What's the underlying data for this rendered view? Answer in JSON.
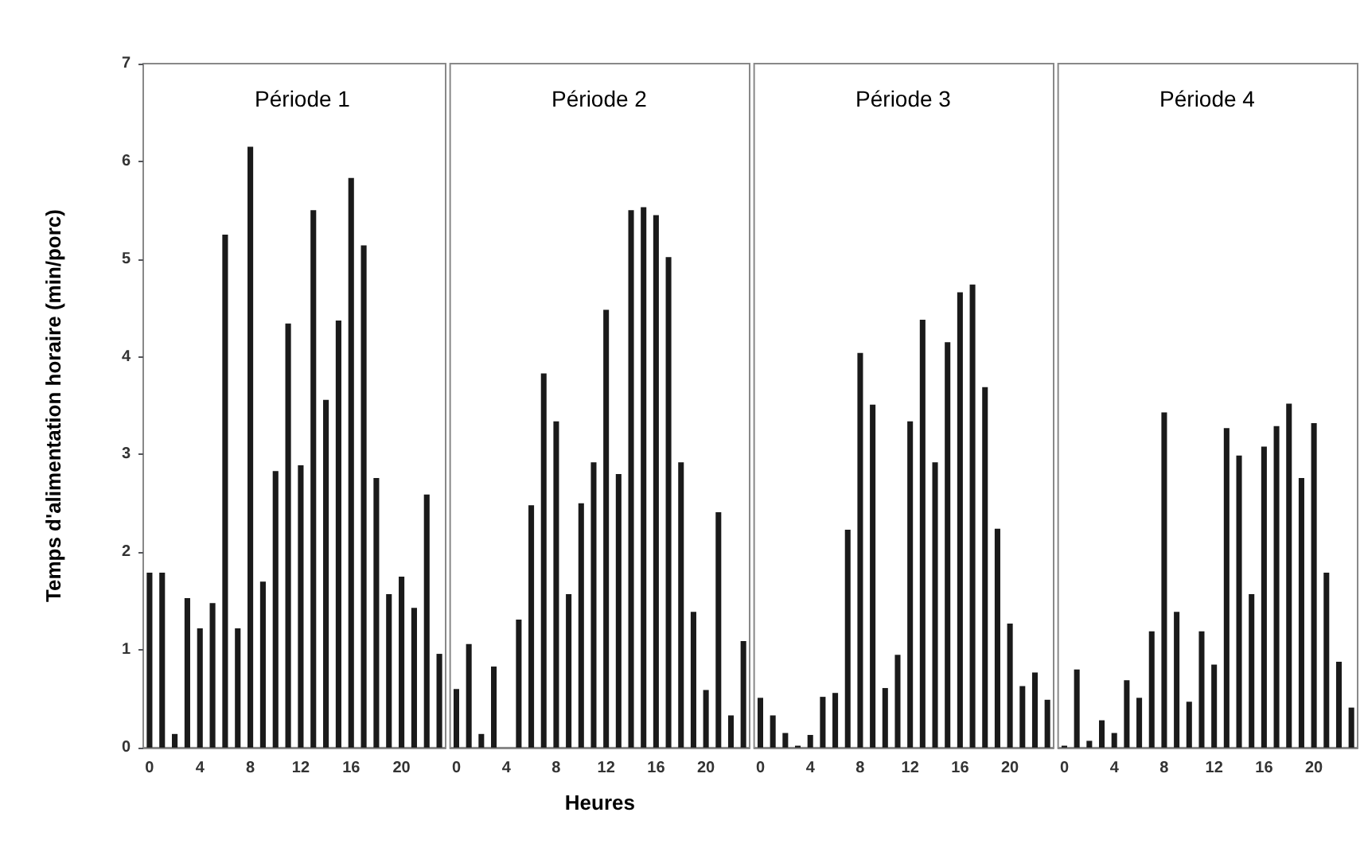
{
  "chart_data": [
    {
      "type": "bar",
      "title": "Période 1",
      "ylabel": "Temps d'alimentation horaire (min/porc)",
      "categories": [
        "0",
        null,
        null,
        null,
        "4",
        null,
        null,
        null,
        "8",
        null,
        null,
        null,
        "12",
        null,
        null,
        null,
        "16",
        null,
        null,
        null,
        "20",
        null,
        null,
        null
      ],
      "values": [
        1.79,
        1.79,
        0.14,
        1.53,
        1.22,
        1.48,
        5.25,
        1.22,
        6.15,
        1.7,
        2.83,
        4.34,
        2.89,
        5.5,
        3.56,
        4.37,
        5.83,
        5.14,
        2.76,
        1.57,
        1.75,
        1.43,
        2.59,
        0.96
      ],
      "color": "#1a1a1a",
      "ylim": [
        0,
        7
      ],
      "yticks": [
        0,
        1,
        2,
        3,
        4,
        5,
        6,
        7
      ]
    },
    {
      "type": "bar",
      "title": "Période 2",
      "xlabel": "Heures",
      "categories": [
        "0",
        null,
        null,
        null,
        "4",
        null,
        null,
        null,
        "8",
        null,
        null,
        null,
        "12",
        null,
        null,
        null,
        "16",
        null,
        null,
        null,
        "20",
        null,
        null,
        null
      ],
      "values": [
        0.6,
        1.06,
        0.14,
        0.83,
        0,
        1.31,
        2.48,
        3.83,
        3.34,
        1.57,
        2.5,
        2.92,
        4.48,
        2.8,
        5.5,
        5.53,
        5.45,
        5.02,
        2.92,
        1.39,
        0.59,
        2.41,
        0.33,
        1.09
      ],
      "color": "#1a1a1a",
      "ylim": [
        0,
        7
      ],
      "yticks": [
        0,
        1,
        2,
        3,
        4,
        5,
        6,
        7
      ],
      "tick_labels": "x"
    },
    {
      "type": "bar",
      "title": "Période 3",
      "categories": [
        "0",
        null,
        null,
        null,
        "4",
        null,
        null,
        null,
        "8",
        null,
        null,
        null,
        "12",
        null,
        null,
        null,
        "16",
        null,
        null,
        null,
        "20",
        null,
        null,
        null
      ],
      "values": [
        0.51,
        0.33,
        0.15,
        0.02,
        0.13,
        0.52,
        0.56,
        2.23,
        4.04,
        3.51,
        0.61,
        0.95,
        3.34,
        4.38,
        2.92,
        4.15,
        4.66,
        4.74,
        3.69,
        2.24,
        1.27,
        0.63,
        0.77,
        0.49
      ],
      "color": "#1a1a1a",
      "ylim": [
        0,
        7
      ],
      "yticks": [
        0,
        1,
        2,
        3,
        4,
        5,
        6,
        7
      ],
      "tick_labels": "x"
    },
    {
      "type": "bar",
      "title": "Période 4",
      "categories": [
        "0",
        null,
        null,
        null,
        "4",
        null,
        null,
        null,
        "8",
        null,
        null,
        null,
        "12",
        null,
        null,
        null,
        "16",
        null,
        null,
        null,
        "20",
        null,
        null,
        null
      ],
      "values": [
        0.02,
        0.8,
        0.07,
        0.28,
        0.15,
        0.69,
        0.51,
        1.19,
        3.43,
        1.39,
        0.47,
        1.19,
        0.85,
        3.27,
        2.99,
        1.57,
        3.08,
        3.29,
        3.52,
        2.76,
        3.32,
        1.79,
        0.88,
        0.41
      ],
      "color": "#1a1a1a",
      "ylim": [
        0,
        7
      ],
      "yticks": [
        0,
        1,
        2,
        3,
        4,
        5,
        6,
        7
      ],
      "tick_labels": "x"
    }
  ]
}
